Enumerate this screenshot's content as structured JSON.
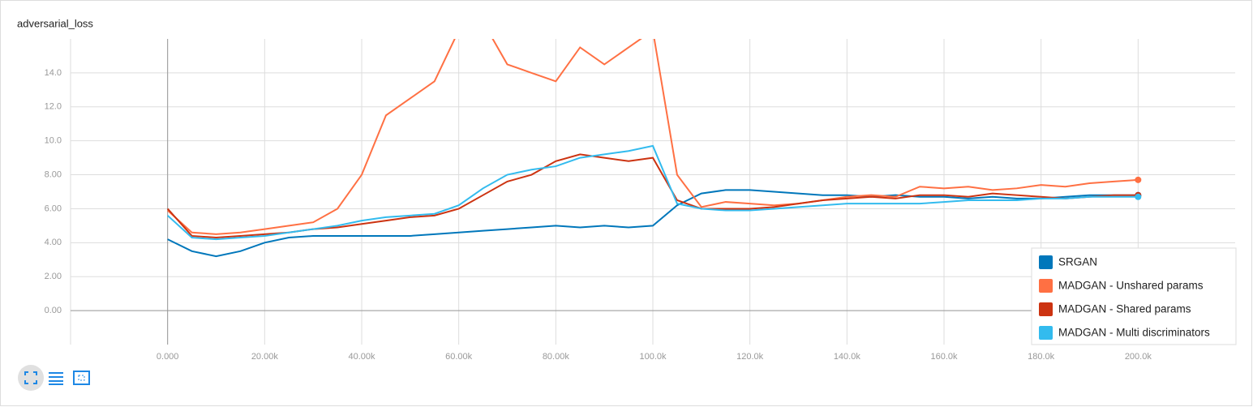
{
  "chart_data": {
    "type": "line",
    "title": "adversarial_loss",
    "x": [
      0,
      5000,
      10000,
      15000,
      20000,
      25000,
      30000,
      35000,
      40000,
      45000,
      50000,
      55000,
      60000,
      65000,
      70000,
      75000,
      80000,
      85000,
      90000,
      95000,
      100000,
      105000,
      110000,
      115000,
      120000,
      125000,
      130000,
      135000,
      140000,
      145000,
      150000,
      155000,
      160000,
      165000,
      170000,
      175000,
      180000,
      185000,
      190000,
      195000,
      200000
    ],
    "series": [
      {
        "name": "SRGAN",
        "color": "#0077bb",
        "values": [
          4.2,
          3.5,
          3.2,
          3.5,
          4.0,
          4.3,
          4.4,
          4.4,
          4.4,
          4.4,
          4.4,
          4.5,
          4.6,
          4.7,
          4.8,
          4.9,
          5.0,
          4.9,
          5.0,
          4.9,
          5.0,
          6.2,
          6.9,
          7.1,
          7.1,
          7.0,
          6.9,
          6.8,
          6.8,
          6.7,
          6.8,
          6.7,
          6.7,
          6.6,
          6.7,
          6.6,
          6.6,
          6.7,
          6.8,
          6.8,
          6.8
        ]
      },
      {
        "name": "MADGAN - Unshared params",
        "color": "#ff7043",
        "values": [
          5.9,
          4.6,
          4.5,
          4.6,
          4.8,
          5.0,
          5.2,
          6.0,
          8.0,
          11.5,
          12.5,
          13.5,
          16.5,
          17,
          14.5,
          14.0,
          13.5,
          15.5,
          14.5,
          15.5,
          16.5,
          8.0,
          6.1,
          6.4,
          6.3,
          6.2,
          6.3,
          6.5,
          6.7,
          6.8,
          6.7,
          7.3,
          7.2,
          7.3,
          7.1,
          7.2,
          7.4,
          7.3,
          7.5,
          7.6,
          7.7
        ]
      },
      {
        "name": "MADGAN - Shared params",
        "color": "#cc3311",
        "values": [
          6.0,
          4.4,
          4.3,
          4.4,
          4.5,
          4.6,
          4.8,
          4.9,
          5.1,
          5.3,
          5.5,
          5.6,
          6.0,
          6.8,
          7.6,
          8.0,
          8.8,
          9.2,
          9.0,
          8.8,
          9.0,
          6.5,
          6.0,
          6.0,
          6.0,
          6.1,
          6.3,
          6.5,
          6.6,
          6.7,
          6.6,
          6.8,
          6.8,
          6.7,
          6.9,
          6.8,
          6.7,
          6.6,
          6.7,
          6.8,
          6.8
        ]
      },
      {
        "name": "MADGAN - Multi discriminators",
        "color": "#33bbee",
        "values": [
          5.6,
          4.3,
          4.2,
          4.3,
          4.4,
          4.6,
          4.8,
          5.0,
          5.3,
          5.5,
          5.6,
          5.7,
          6.2,
          7.2,
          8.0,
          8.3,
          8.5,
          9.0,
          9.2,
          9.4,
          9.7,
          6.3,
          6.0,
          5.9,
          5.9,
          6.0,
          6.1,
          6.2,
          6.3,
          6.3,
          6.3,
          6.3,
          6.4,
          6.5,
          6.5,
          6.5,
          6.6,
          6.6,
          6.7,
          6.7,
          6.7
        ]
      }
    ],
    "xlim": [
      -20000,
      220000
    ],
    "ylim": [
      -2,
      16
    ],
    "xticks": [
      {
        "value": 0,
        "label": "0.000"
      },
      {
        "value": 20000,
        "label": "20.00k"
      },
      {
        "value": 40000,
        "label": "40.00k"
      },
      {
        "value": 60000,
        "label": "60.00k"
      },
      {
        "value": 80000,
        "label": "80.00k"
      },
      {
        "value": 100000,
        "label": "100.0k"
      },
      {
        "value": 120000,
        "label": "120.0k"
      },
      {
        "value": 140000,
        "label": "140.0k"
      },
      {
        "value": 160000,
        "label": "160.0k"
      },
      {
        "value": 180000,
        "label": "180.0k"
      },
      {
        "value": 200000,
        "label": "200.0k"
      }
    ],
    "yticks": [
      {
        "value": 0,
        "label": "0.00"
      },
      {
        "value": 2,
        "label": "2.00"
      },
      {
        "value": 4,
        "label": "4.00"
      },
      {
        "value": 6,
        "label": "6.00"
      },
      {
        "value": 8,
        "label": "8.00"
      },
      {
        "value": 10,
        "label": "10.0"
      },
      {
        "value": 12,
        "label": "12.0"
      },
      {
        "value": 14,
        "label": "14.0"
      }
    ],
    "grid": true,
    "legend": "bottom-right"
  }
}
